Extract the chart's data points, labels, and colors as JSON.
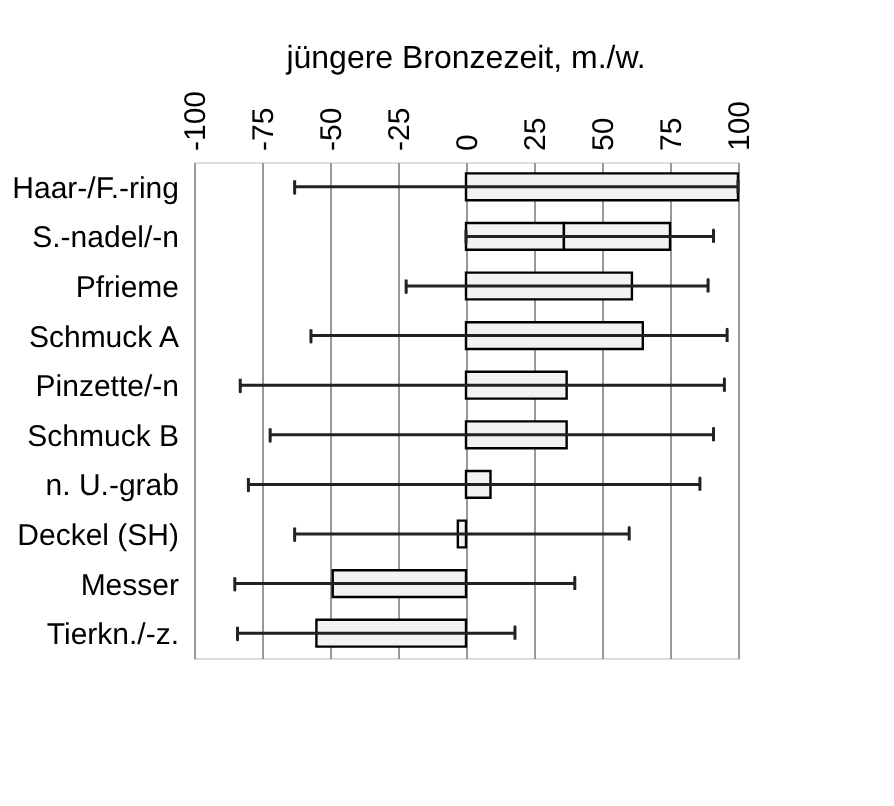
{
  "chart_data": {
    "type": "bar",
    "orientation": "horizontal",
    "stacked": true,
    "title": "jüngere Bronzezeit, m./w.",
    "categories": [
      "Haar-/F.-ring",
      "S.-nadel/-n",
      "Pfrieme",
      "Schmuck A",
      "Pinzette/-n",
      "Schmuck B",
      "n. U.-grab",
      "Deckel (SH)",
      "Messer",
      "Tierkn./-z."
    ],
    "series": [
      {
        "color": "#f2f2f2",
        "values": [
          100,
          36,
          61,
          65,
          37,
          37,
          9,
          -3,
          -49,
          -55
        ],
        "errors": [
          [
            -63,
            100
          ],
          [
            0,
            91
          ],
          [
            -22,
            89
          ],
          [
            -57,
            96
          ],
          [
            -83,
            95
          ],
          [
            -72,
            91
          ],
          [
            -80,
            86
          ],
          [
            -63,
            60
          ],
          [
            -85,
            40
          ],
          [
            -84,
            18
          ]
        ]
      },
      {
        "color": "#f2f2f2",
        "values": [
          null,
          39,
          null,
          null,
          null,
          null,
          null,
          null,
          null,
          null
        ]
      }
    ],
    "xlim": [
      -100,
      100
    ],
    "xticks": [
      -100,
      -75,
      -50,
      -25,
      0,
      25,
      50,
      75,
      100
    ],
    "grid": "x"
  }
}
